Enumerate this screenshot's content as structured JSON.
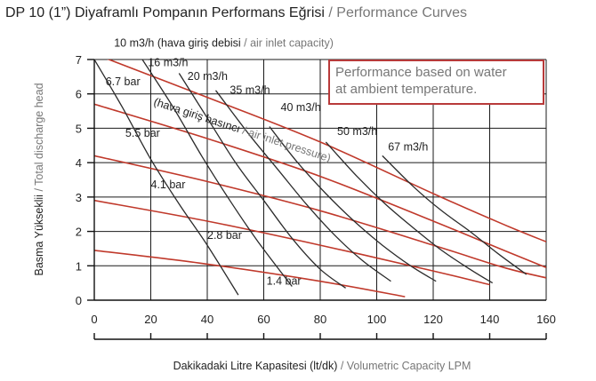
{
  "title": {
    "main": "DP 10 (1”) Diyaframlı Pompanın Performans Eğrisi",
    "separator": " / ",
    "sub": "Performance Curves"
  },
  "colors": {
    "air_curve": "#2b2b2b",
    "pressure_curve": "#c0392b",
    "grid": "#1a1a1a",
    "note_border": "#b83a3a",
    "gray_text": "#777777"
  },
  "chart_data": {
    "type": "line",
    "title": "DP 10 (1”) Diyaframlı Pompanın Performans Eğrisi / Performance Curves",
    "xlabel": {
      "main": "Dakikadaki Litre Kapasitesi (lt/dk)",
      "separator": " / ",
      "sub": "Volumetric Capacity LPM"
    },
    "ylabel": {
      "main": "Basma Yükseklii",
      "separator": " / ",
      "sub": "Total discharge head"
    },
    "xlim": [
      0,
      160
    ],
    "ylim": [
      0,
      7
    ],
    "xticks": [
      0,
      20,
      40,
      60,
      80,
      100,
      120,
      140,
      160
    ],
    "yticks": [
      0,
      1,
      2,
      3,
      4,
      5,
      6,
      7
    ],
    "grid": true,
    "air_inlet_header": {
      "main": "(hava giriş debisi",
      "separator": " / ",
      "sub": "air inlet capacity)"
    },
    "pressure_header": {
      "main": "(hava giriş basıncı",
      "separator": " / ",
      "sub": "air inlet pressure)"
    },
    "note": [
      "Performance based on water",
      "at ambient temperature."
    ],
    "air_inlet_series": [
      {
        "name": "10 m3/h",
        "points": [
          [
            0,
            7.0
          ],
          [
            10,
            5.6
          ],
          [
            20,
            4.1
          ],
          [
            30,
            2.8
          ],
          [
            40,
            1.6
          ],
          [
            51,
            0.15
          ]
        ]
      },
      {
        "name": "16 m3/h",
        "points": [
          [
            17,
            7.0
          ],
          [
            28,
            5.6
          ],
          [
            38,
            4.2
          ],
          [
            48,
            2.9
          ],
          [
            58,
            1.7
          ],
          [
            70,
            0.4
          ]
        ]
      },
      {
        "name": "20 m3/h",
        "points": [
          [
            30,
            6.6
          ],
          [
            40,
            5.3
          ],
          [
            50,
            4.0
          ],
          [
            60,
            2.9
          ],
          [
            70,
            1.8
          ],
          [
            80,
            0.9
          ],
          [
            89,
            0.35
          ]
        ]
      },
      {
        "name": "35 m3/h",
        "points": [
          [
            43,
            6.1
          ],
          [
            55,
            4.8
          ],
          [
            65,
            3.8
          ],
          [
            75,
            2.8
          ],
          [
            85,
            1.9
          ],
          [
            95,
            1.15
          ],
          [
            105,
            0.55
          ]
        ]
      },
      {
        "name": "40 m3/h",
        "points": [
          [
            62,
            5.05
          ],
          [
            72,
            4.0
          ],
          [
            82,
            3.1
          ],
          [
            92,
            2.3
          ],
          [
            102,
            1.6
          ],
          [
            112,
            1.0
          ],
          [
            121,
            0.55
          ]
        ]
      },
      {
        "name": "50 m3/h",
        "points": [
          [
            82,
            4.6
          ],
          [
            93,
            3.6
          ],
          [
            103,
            2.8
          ],
          [
            113,
            2.1
          ],
          [
            123,
            1.45
          ],
          [
            133,
            0.9
          ],
          [
            141,
            0.5
          ]
        ]
      },
      {
        "name": "67 m3/h",
        "points": [
          [
            102,
            4.2
          ],
          [
            113,
            3.3
          ],
          [
            123,
            2.6
          ],
          [
            133,
            2.0
          ],
          [
            143,
            1.35
          ],
          [
            153,
            0.75
          ]
        ]
      }
    ],
    "pressure_series": [
      {
        "name": "6.7 bar",
        "points": [
          [
            2,
            7.1
          ],
          [
            40,
            5.9
          ],
          [
            80,
            4.6
          ],
          [
            120,
            3.1
          ],
          [
            145,
            2.2
          ],
          [
            160,
            1.7
          ]
        ]
      },
      {
        "name": "5.5 bar",
        "points": [
          [
            0,
            5.7
          ],
          [
            40,
            4.7
          ],
          [
            80,
            3.6
          ],
          [
            120,
            2.3
          ],
          [
            145,
            1.45
          ],
          [
            160,
            0.95
          ]
        ]
      },
      {
        "name": "4.1 bar",
        "points": [
          [
            0,
            4.2
          ],
          [
            40,
            3.45
          ],
          [
            80,
            2.6
          ],
          [
            120,
            1.6
          ],
          [
            145,
            0.95
          ],
          [
            160,
            0.65
          ]
        ]
      },
      {
        "name": "2.8 bar",
        "points": [
          [
            0,
            2.9
          ],
          [
            40,
            2.3
          ],
          [
            80,
            1.6
          ],
          [
            120,
            0.85
          ],
          [
            140,
            0.45
          ]
        ]
      },
      {
        "name": "1.4 bar",
        "points": [
          [
            0,
            1.45
          ],
          [
            40,
            1.05
          ],
          [
            80,
            0.55
          ],
          [
            110,
            0.1
          ]
        ]
      }
    ],
    "air_labels": [
      {
        "text": "10 m3/h (hava giriş debisi",
        "gray": "/ air inlet capacity)",
        "x": 7,
        "y": 7.38
      },
      {
        "text": "16 m3/h",
        "x": 19,
        "y": 6.8
      },
      {
        "text": "20 m3/h",
        "x": 33,
        "y": 6.4
      },
      {
        "text": "35 m3/h",
        "x": 48,
        "y": 6.0
      },
      {
        "text": "40 m3/h",
        "x": 66,
        "y": 5.5
      },
      {
        "text": "50 m3/h",
        "x": 86,
        "y": 4.8
      },
      {
        "text": "67 m3/h",
        "x": 104,
        "y": 4.35
      }
    ],
    "pressure_labels": [
      {
        "text": "6.7 bar",
        "x": 4,
        "y": 6.25
      },
      {
        "text": "5.5 bar",
        "x": 11,
        "y": 4.75
      },
      {
        "text": "4.1 bar",
        "x": 20,
        "y": 3.25
      },
      {
        "text": "2.8 bar",
        "x": 40,
        "y": 1.78
      },
      {
        "text": "1.4 bar",
        "x": 61,
        "y": 0.45
      }
    ]
  }
}
